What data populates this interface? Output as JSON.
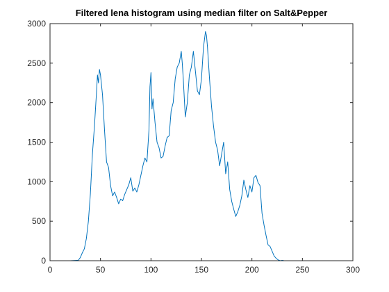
{
  "chart_data": {
    "type": "line",
    "title": "Filtered lena histogram using median filter on Salt&Pepper",
    "xlabel": "",
    "ylabel": "",
    "xlim": [
      0,
      300
    ],
    "ylim": [
      0,
      3000
    ],
    "grid": false,
    "x_ticks": [
      0,
      50,
      100,
      150,
      200,
      250,
      300
    ],
    "y_ticks": [
      0,
      500,
      1000,
      1500,
      2000,
      2500,
      3000
    ],
    "line_color": "#0072BD",
    "series": [
      {
        "x": [
          0,
          10,
          20,
          28,
          30,
          32,
          34,
          36,
          38,
          40,
          42,
          44,
          46,
          47,
          48,
          49,
          50,
          52,
          54,
          56,
          58,
          60,
          62,
          64,
          66,
          68,
          70,
          72,
          74,
          76,
          78,
          80,
          82,
          84,
          86,
          88,
          90,
          92,
          94,
          96,
          98,
          99,
          100,
          101,
          102,
          104,
          106,
          108,
          110,
          112,
          114,
          116,
          118,
          120,
          122,
          124,
          126,
          128,
          130,
          131,
          132,
          134,
          136,
          138,
          140,
          142,
          144,
          146,
          148,
          150,
          152,
          154,
          155,
          156,
          158,
          160,
          162,
          164,
          166,
          168,
          170,
          172,
          174,
          176,
          178,
          180,
          182,
          184,
          186,
          188,
          190,
          192,
          194,
          196,
          198,
          200,
          202,
          204,
          206,
          208,
          210,
          212,
          214,
          216,
          218,
          220,
          222,
          224,
          226,
          228,
          230,
          232,
          234,
          236,
          240,
          250,
          260,
          275
        ],
        "y": [
          0,
          0,
          0,
          5,
          40,
          100,
          150,
          280,
          500,
          850,
          1350,
          1700,
          2120,
          2350,
          2250,
          2420,
          2350,
          2100,
          1650,
          1250,
          1180,
          950,
          820,
          870,
          800,
          720,
          780,
          760,
          840,
          900,
          960,
          1050,
          880,
          920,
          870,
          960,
          1080,
          1200,
          1300,
          1250,
          1650,
          2200,
          2380,
          1920,
          2050,
          1750,
          1500,
          1430,
          1300,
          1320,
          1450,
          1560,
          1580,
          1900,
          2000,
          2300,
          2450,
          2500,
          2650,
          2500,
          2300,
          1820,
          2000,
          2350,
          2450,
          2650,
          2400,
          2150,
          2100,
          2300,
          2700,
          2900,
          2850,
          2700,
          2300,
          1950,
          1700,
          1500,
          1400,
          1200,
          1350,
          1500,
          1100,
          1250,
          900,
          750,
          650,
          560,
          620,
          700,
          820,
          1020,
          900,
          800,
          950,
          870,
          1050,
          1080,
          990,
          950,
          600,
          450,
          320,
          200,
          180,
          120,
          60,
          30,
          10,
          0,
          5,
          0,
          0,
          0,
          0,
          0,
          0,
          0
        ]
      }
    ]
  }
}
